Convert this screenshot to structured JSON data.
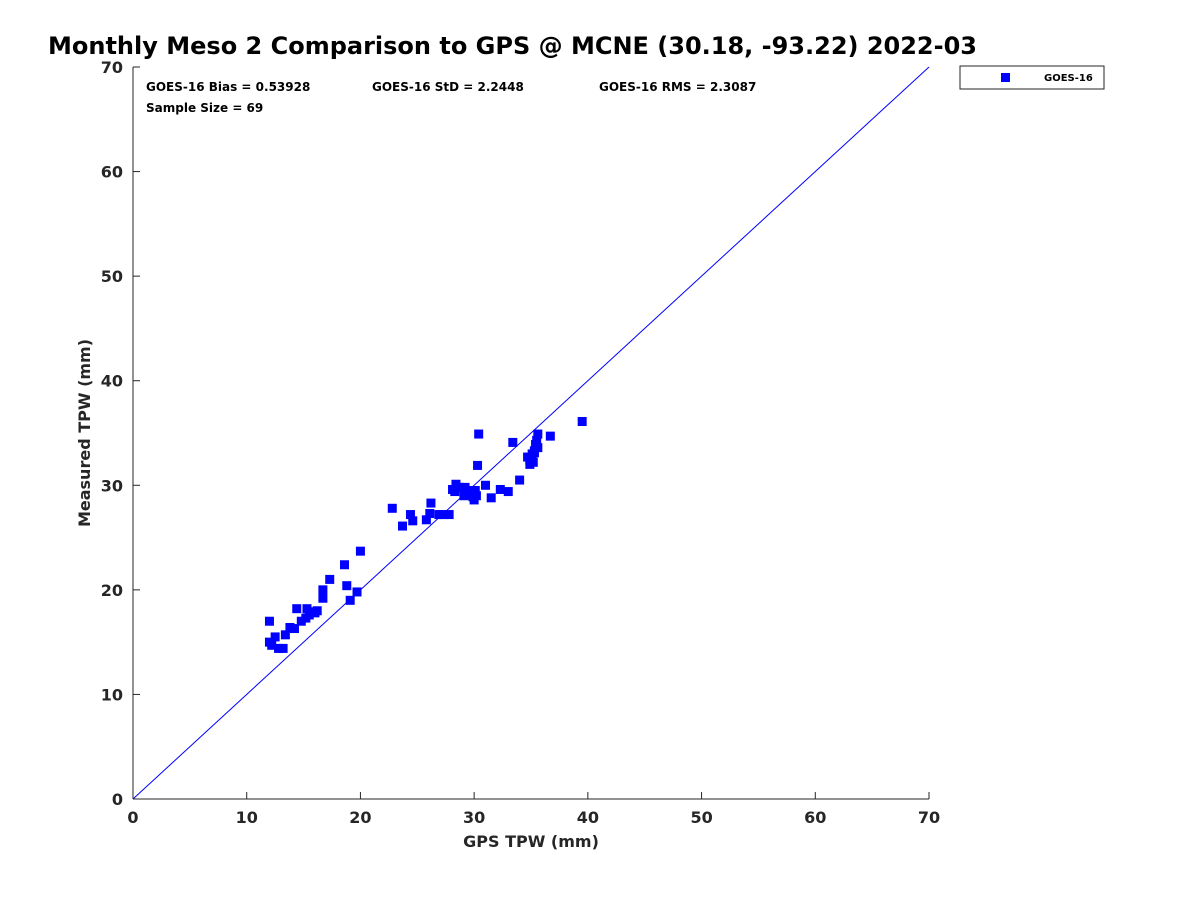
{
  "chart_data": {
    "type": "scatter",
    "title": "Monthly Meso 2 Comparison to GPS @ MCNE (30.18, -93.22) 2022-03",
    "xlabel": "GPS TPW (mm)",
    "ylabel": "Measured TPW (mm)",
    "xlim": [
      0,
      70
    ],
    "ylim": [
      0,
      70
    ],
    "xticks": [
      "0",
      "10",
      "20",
      "30",
      "40",
      "50",
      "60",
      "70"
    ],
    "yticks": [
      "0",
      "10",
      "20",
      "30",
      "40",
      "50",
      "60",
      "70"
    ],
    "grid": false,
    "legend_position": "outside-top-right",
    "annotations": {
      "bias": "GOES-16 Bias = 0.53928",
      "std": "GOES-16 StD = 2.2448",
      "rms": "GOES-16 RMS = 2.3087",
      "sample": "Sample Size = 69"
    },
    "reference_line": {
      "x": [
        0,
        70
      ],
      "y": [
        0,
        70
      ],
      "color": "#0000ff"
    },
    "series": [
      {
        "name": "GOES-16",
        "color": "#0000ff",
        "marker": "square",
        "points": [
          [
            12.0,
            15.0
          ],
          [
            12.0,
            17.0
          ],
          [
            12.2,
            14.7
          ],
          [
            12.5,
            15.5
          ],
          [
            12.8,
            14.4
          ],
          [
            13.2,
            14.4
          ],
          [
            13.4,
            15.7
          ],
          [
            13.8,
            16.4
          ],
          [
            14.2,
            16.3
          ],
          [
            14.4,
            18.2
          ],
          [
            14.8,
            17.0
          ],
          [
            15.2,
            17.3
          ],
          [
            15.3,
            18.2
          ],
          [
            15.7,
            17.9
          ],
          [
            16.2,
            18.0
          ],
          [
            16.7,
            19.2
          ],
          [
            16.7,
            20.0
          ],
          [
            17.3,
            21.0
          ],
          [
            18.6,
            22.4
          ],
          [
            18.8,
            20.4
          ],
          [
            19.1,
            19.0
          ],
          [
            19.7,
            19.8
          ],
          [
            20.0,
            23.7
          ],
          [
            22.8,
            27.8
          ],
          [
            23.7,
            26.1
          ],
          [
            24.4,
            27.2
          ],
          [
            24.6,
            26.6
          ],
          [
            25.8,
            26.7
          ],
          [
            26.1,
            27.3
          ],
          [
            26.2,
            28.3
          ],
          [
            26.9,
            27.2
          ],
          [
            27.3,
            27.2
          ],
          [
            27.8,
            27.2
          ],
          [
            28.1,
            29.6
          ],
          [
            28.4,
            30.1
          ],
          [
            28.7,
            29.8
          ],
          [
            29.1,
            29.0
          ],
          [
            29.2,
            29.8
          ],
          [
            29.5,
            29.5
          ],
          [
            29.8,
            29.1
          ],
          [
            30.0,
            28.6
          ],
          [
            30.1,
            29.5
          ],
          [
            30.2,
            29.0
          ],
          [
            30.3,
            31.9
          ],
          [
            30.4,
            34.9
          ],
          [
            31.0,
            30.0
          ],
          [
            31.5,
            28.8
          ],
          [
            32.3,
            29.6
          ],
          [
            33.0,
            29.4
          ],
          [
            33.4,
            34.1
          ],
          [
            34.0,
            30.5
          ],
          [
            34.7,
            32.7
          ],
          [
            34.9,
            32.0
          ],
          [
            35.0,
            32.6
          ],
          [
            35.1,
            33.0
          ],
          [
            35.2,
            32.2
          ],
          [
            35.3,
            33.3
          ],
          [
            35.4,
            33.9
          ],
          [
            35.5,
            34.3
          ],
          [
            35.6,
            34.9
          ],
          [
            35.6,
            33.6
          ],
          [
            36.7,
            34.7
          ],
          [
            39.5,
            36.1
          ],
          [
            15.5,
            17.6
          ],
          [
            16.0,
            17.8
          ],
          [
            28.3,
            29.4
          ],
          [
            29.9,
            28.9
          ],
          [
            34.9,
            32.4
          ],
          [
            35.3,
            33.1
          ]
        ]
      }
    ]
  }
}
